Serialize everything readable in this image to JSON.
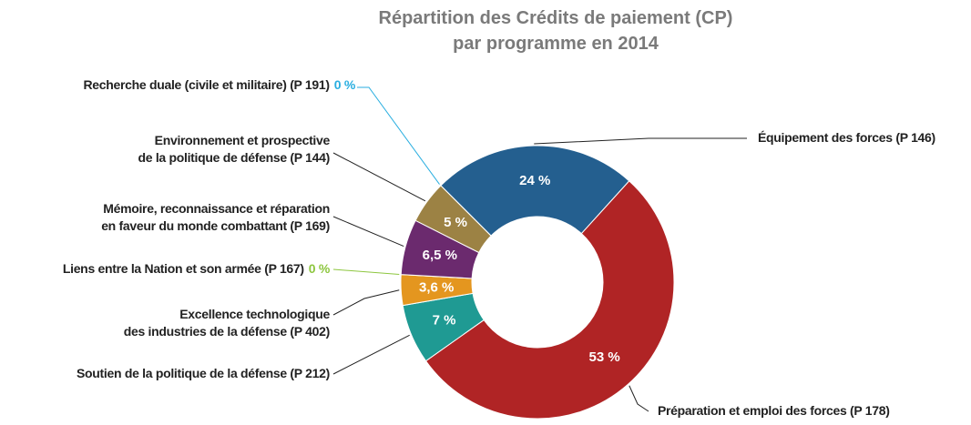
{
  "chart_data": {
    "type": "donut",
    "title": "Répartition des Crédits de paiement (CP)\npar programme en 2014",
    "categories": [
      "Équipement des forces (P 146)",
      "Préparation et emploi des forces (P 178)",
      "Soutien de la politique de la défense (P 212)",
      "Excellence technologique\ndes industries de la défense (P 402)",
      "Liens entre la Nation et son armée (P 167)",
      "Mémoire, reconnaissance et réparation\nen faveur du monde combattant (P 169)",
      "Environnement et prospective\nde la politique de défense (P 144)",
      "Recherche duale (civile et militaire) (P 191)"
    ],
    "values": [
      24,
      53,
      7,
      3.6,
      0,
      6.5,
      5,
      0
    ],
    "value_labels": [
      "24 %",
      "53 %",
      "7 %",
      "3,6 %",
      "0 %",
      "6,5 %",
      "5 %",
      "0 %"
    ],
    "colors": [
      "#245f8f",
      "#b02425",
      "#1f9a93",
      "#e4961f",
      "#8dc63f",
      "#6b2a6e",
      "#9c8244",
      "#29aee0"
    ]
  }
}
